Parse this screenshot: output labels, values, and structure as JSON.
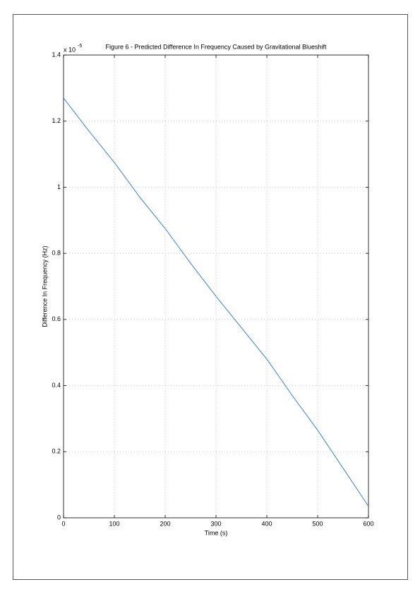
{
  "chart_data": {
    "type": "line",
    "title": "Figure 6 - Predicted Difference In Frequency Caused by Gravitational Blueshift",
    "x_label": "Time (s)",
    "y_label": "Difference In Frequency (Hz)",
    "y_multiplier": {
      "base": "x 10",
      "exponent": "-5"
    },
    "x": [
      0,
      50,
      100,
      150,
      200,
      250,
      300,
      350,
      400,
      450,
      500,
      550,
      600
    ],
    "series": [
      {
        "name": "Difference",
        "color": "#3b7fc4",
        "values": [
          1.27,
          1.17,
          1.075,
          0.97,
          0.875,
          0.77,
          0.67,
          0.575,
          0.48,
          0.37,
          0.265,
          0.15,
          0.035
        ]
      }
    ],
    "xlim": [
      0,
      600
    ],
    "xticks": [
      0,
      100,
      200,
      300,
      400,
      500,
      600
    ],
    "ylim": [
      0,
      1.4
    ],
    "yticks": [
      0,
      0.2,
      0.4,
      0.6,
      0.8,
      1,
      1.2,
      1.4
    ],
    "grid": true
  }
}
